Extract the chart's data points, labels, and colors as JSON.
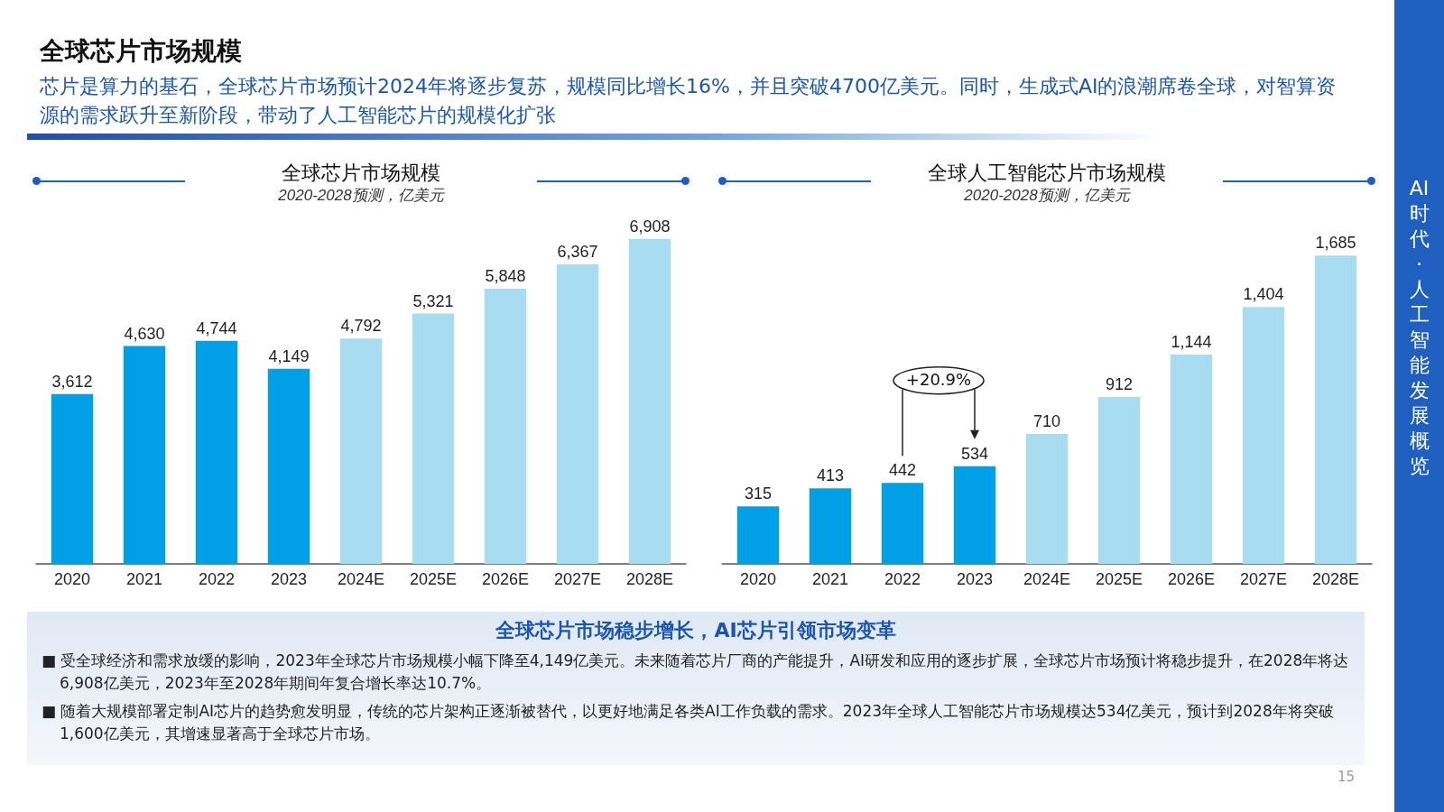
{
  "chart_data": [
    {
      "type": "bar",
      "title": "全球芯片市场规模",
      "subtitle": "2020-2028预测，亿美元",
      "categories": [
        "2020",
        "2021",
        "2022",
        "2023",
        "2024E",
        "2025E",
        "2026E",
        "2027E",
        "2028E"
      ],
      "values": [
        3612,
        4630,
        4744,
        4149,
        4792,
        5321,
        5848,
        6367,
        6908
      ],
      "colors": [
        "#00a0e9",
        "#00a0e9",
        "#00a0e9",
        "#00a0e9",
        "#a8dcf0",
        "#a8dcf0",
        "#a8dcf0",
        "#a8dcf0",
        "#a8dcf0"
      ],
      "value_labels": [
        "3,612",
        "4,630",
        "4,744",
        "4,149",
        "4,792",
        "5,321",
        "5,848",
        "6,367",
        "6,908"
      ],
      "annotations": [
        "全球芯片市场规模",
        "芯片是算力的基石，全球芯片市场预计2024年将逐步复苏，规模同比增长16%，并且突破4700亿美元。同时，生成式AI的浪潮席卷全球，对智算资源的需求跃升至新阶段，带动了人工智能芯片的规模化扩张",
        "AI时代·人工智能发展概览",
        "15"
      ]
    },
    {
      "type": "bar",
      "title": "全球人工智能芯片市场规模",
      "subtitle": "2020-2028预测，亿美元",
      "categories": [
        "2020",
        "2021",
        "2022",
        "2023",
        "2024E",
        "2025E",
        "2026E",
        "2027E",
        "2028E"
      ],
      "values": [
        315,
        413,
        442,
        534,
        710,
        912,
        1144,
        1404,
        1685
      ],
      "colors": [
        "#00a0e9",
        "#00a0e9",
        "#00a0e9",
        "#00a0e9",
        "#a8dcf0",
        "#a8dcf0",
        "#a8dcf0",
        "#a8dcf0",
        "#a8dcf0"
      ],
      "value_labels": [
        "315",
        "413",
        "442",
        "534",
        "710",
        "912",
        "1,144",
        "1,404",
        "1,685"
      ],
      "annotations": [
        "+20.9%"
      ]
    },
    {
      "type": "other",
      "title": "全球芯片市场稳步增长，AI芯片引领市场变革",
      "annotations": [
        "■ 受全球经济和需求放缓的影响，2023年全球芯片市场规模小幅下降至4,149亿美元。未来随着芯片厂商的产能提升，AI研发和应用的逐步扩展，全球芯片市场预计将稳步提升，在2028年将达6,908亿美元，2023年至2028年期间年复合增长率达10.7%。",
        "■ 随着大规模部署定制AI芯片的趋势愈发明显，传统的芯片架构正逐渐被替代，以更好地满足各类AI工作负载的需求。2023年全球人工智能芯片市场规模达534亿美元，预计到2028年将突破1,600亿美元，其增速显著高于全球芯片市场。"
      ]
    }
  ]
}
